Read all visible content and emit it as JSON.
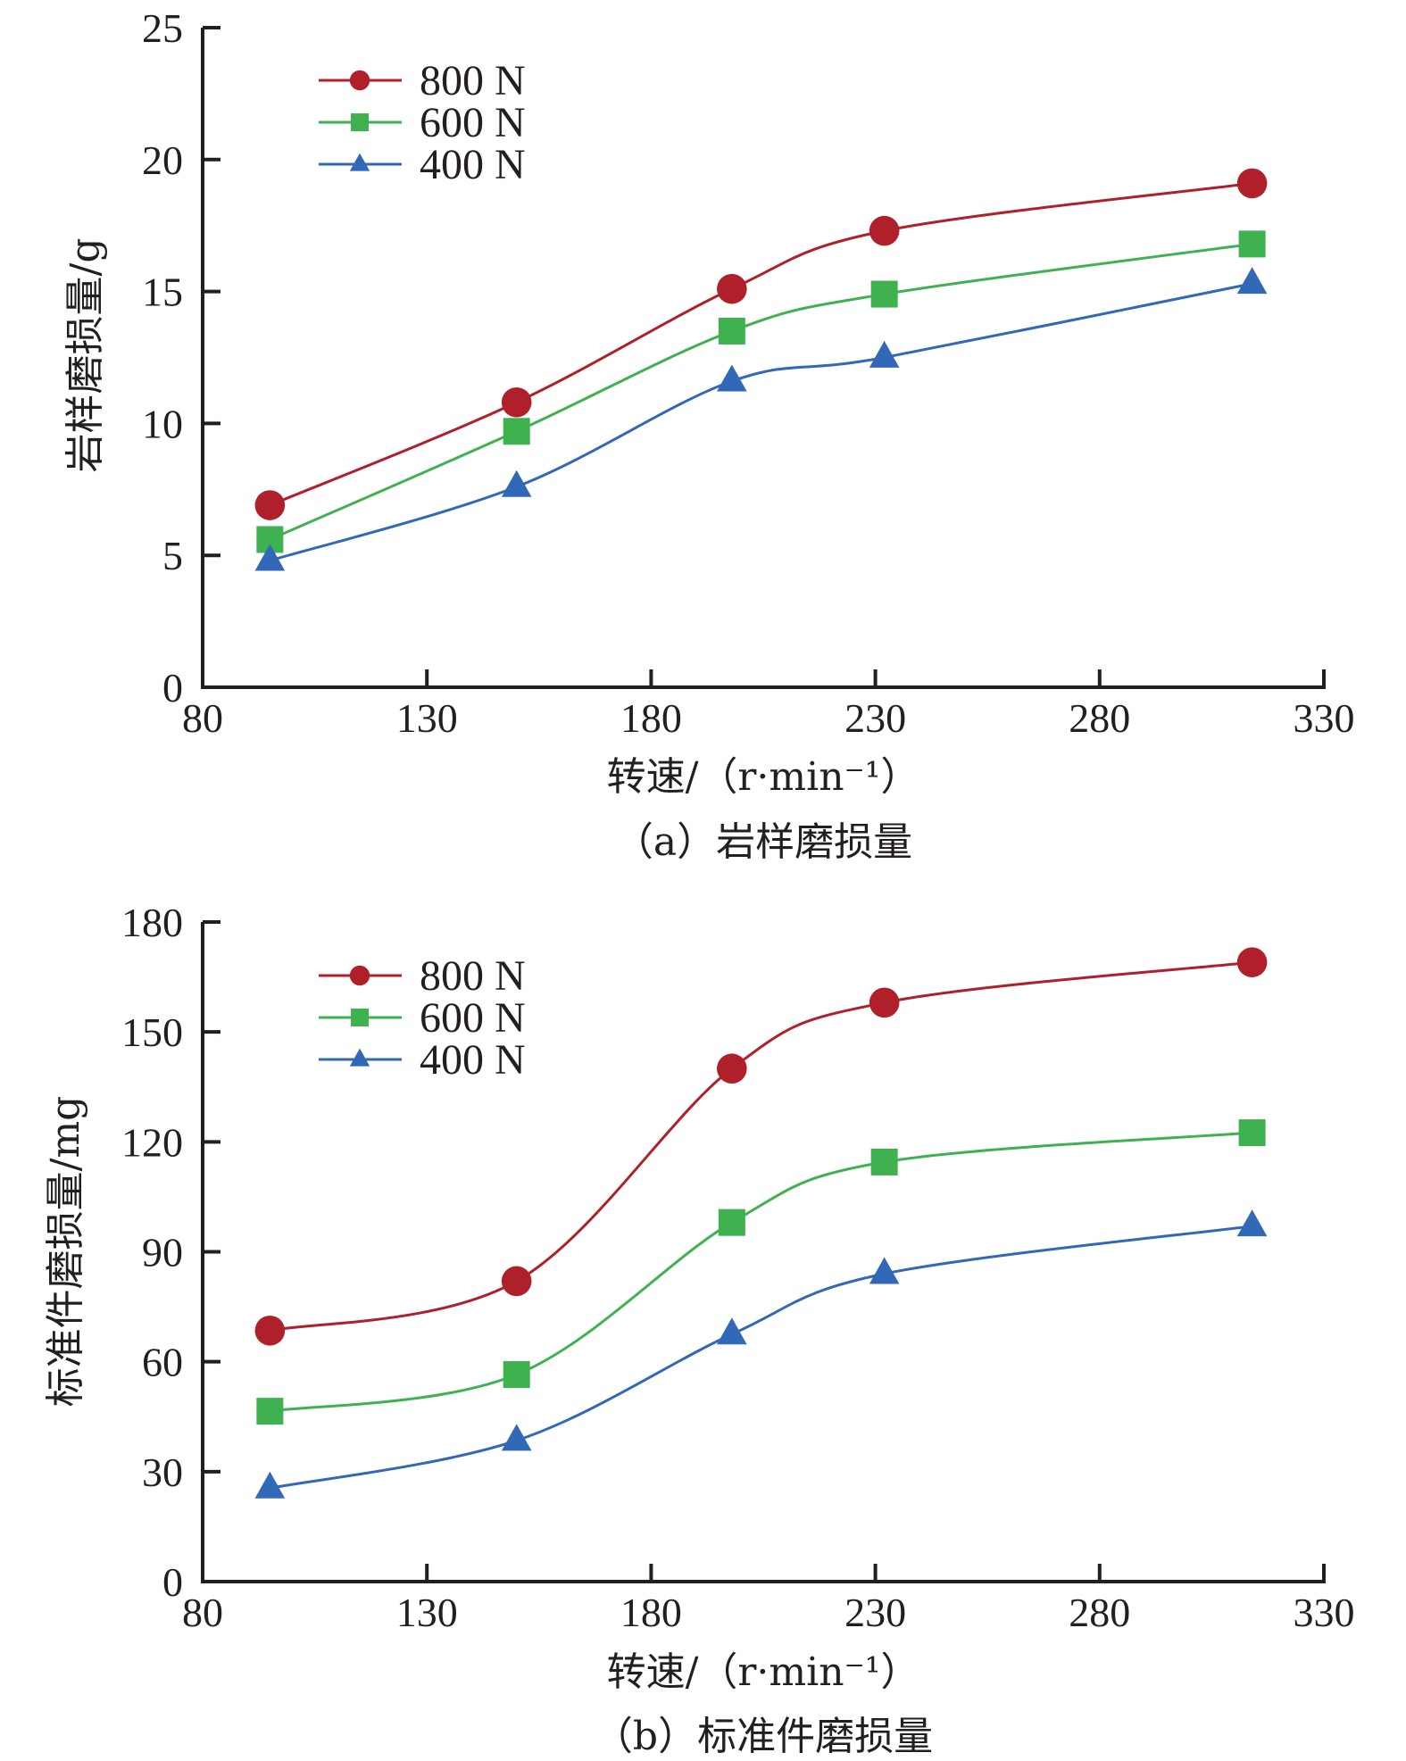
{
  "chart_data": [
    {
      "type": "line",
      "panel": "a",
      "caption": "（a）岩样磨损量",
      "title": "",
      "xlabel": "转速/（r·min⁻¹）",
      "ylabel": "岩样磨损量/g",
      "xlim": [
        80,
        330
      ],
      "ylim": [
        0,
        25
      ],
      "xticks": [
        80,
        130,
        180,
        230,
        280,
        330
      ],
      "yticks": [
        0,
        5,
        10,
        15,
        20,
        25
      ],
      "grid": false,
      "legend_position": "top-left",
      "x": [
        95,
        150,
        198,
        232,
        314
      ],
      "series": [
        {
          "name": "800 N",
          "marker": "circle",
          "color": "#b0202a",
          "values": [
            6.9,
            10.8,
            15.1,
            17.3,
            19.1
          ]
        },
        {
          "name": "600 N",
          "marker": "square",
          "color": "#3fb24f",
          "values": [
            5.6,
            9.7,
            13.5,
            14.9,
            16.8
          ]
        },
        {
          "name": "400 N",
          "marker": "triangle",
          "color": "#3168b8",
          "values": [
            4.8,
            7.6,
            11.6,
            12.5,
            15.3
          ]
        }
      ]
    },
    {
      "type": "line",
      "panel": "b",
      "caption": "（b）标准件磨损量",
      "title": "",
      "xlabel": "转速/（r·min⁻¹）",
      "ylabel": "标准件磨损量/mg",
      "xlim": [
        80,
        330
      ],
      "ylim": [
        0,
        180
      ],
      "xticks": [
        80,
        130,
        180,
        230,
        280,
        330
      ],
      "yticks": [
        0,
        30,
        60,
        90,
        120,
        150,
        180
      ],
      "grid": false,
      "legend_position": "top-left",
      "x": [
        95,
        150,
        198,
        232,
        314
      ],
      "series": [
        {
          "name": "800 N",
          "marker": "circle",
          "color": "#b0202a",
          "values": [
            68.5,
            82,
            140,
            158,
            169
          ]
        },
        {
          "name": "600 N",
          "marker": "square",
          "color": "#3fb24f",
          "values": [
            46.5,
            56.5,
            98,
            114.5,
            122.5
          ]
        },
        {
          "name": "400 N",
          "marker": "triangle",
          "color": "#3168b8",
          "values": [
            25.5,
            38.5,
            67.5,
            84,
            97
          ]
        }
      ]
    }
  ]
}
